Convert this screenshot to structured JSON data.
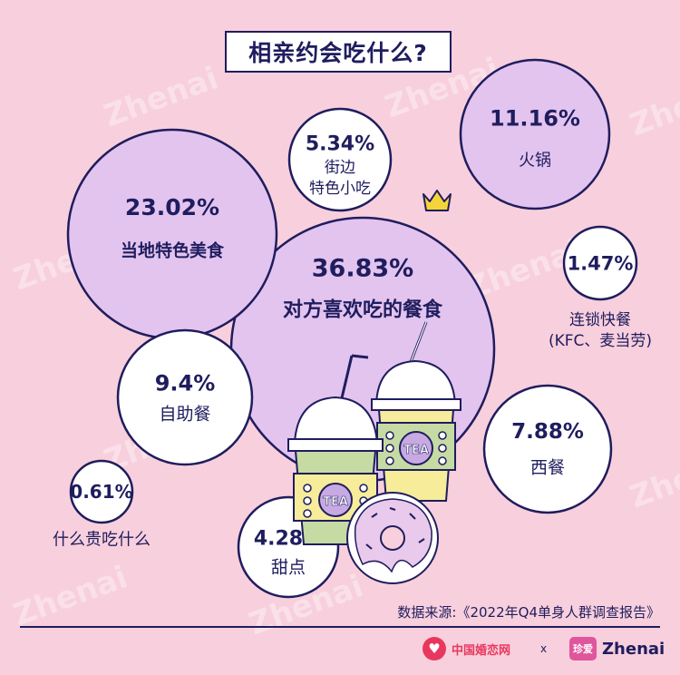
{
  "title": "相亲约会吃什么?",
  "source": "数据来源:《2022年Q4单身人群调查报告》",
  "watermark": "Zhenai",
  "logos": {
    "left_text": "中国婚恋网",
    "separator": "x",
    "right_badge": "珍爱",
    "right_text": "Zhenai"
  },
  "cup_label": "TEA",
  "colors": {
    "background": "#f8cfdc",
    "ink": "#1f1d5e",
    "bubble_fill_large": "#e3c4ef",
    "bubble_fill_small": "#ffffff",
    "crown": "#f5d43a"
  },
  "chart_data": {
    "type": "bubble",
    "title": "相亲约会吃什么?",
    "unit": "%",
    "items": [
      {
        "label": "对方喜欢吃的餐食",
        "value": 36.83
      },
      {
        "label": "当地特色美食",
        "value": 23.02
      },
      {
        "label": "火锅",
        "value": 11.16
      },
      {
        "label": "自助餐",
        "value": 9.4
      },
      {
        "label": "西餐",
        "value": 7.88
      },
      {
        "label": "街边特色小吃",
        "value": 5.34
      },
      {
        "label": "甜点",
        "value": 4.28
      },
      {
        "label": "连锁快餐(KFC、麦当劳)",
        "value": 1.47
      },
      {
        "label": "什么贵吃什么",
        "value": 0.61
      }
    ]
  }
}
